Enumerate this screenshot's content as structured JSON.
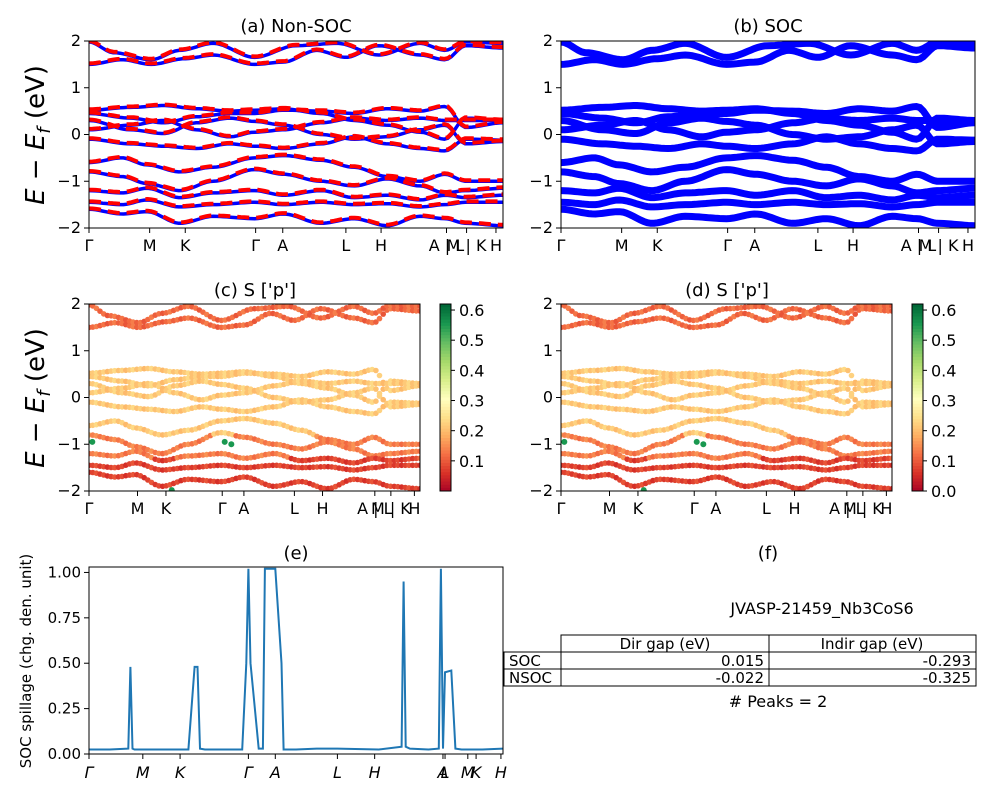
{
  "colors": {
    "nonsoc_solid": "#0000ff",
    "nonsoc_dashed": "#ff0000",
    "soc_band": "#0000ff",
    "spillage_line": "#1f77b4",
    "colormap": "RdYlGn"
  },
  "ylabel_bands": "E − E_f (eV)",
  "ylabel_main": "E − E",
  "ylabel_sub": "f",
  "ylabel_unit": " (eV)",
  "band_yrange": [
    -2,
    2
  ],
  "band_yticks": [
    "2",
    "1",
    "0",
    "−1",
    "−2"
  ],
  "kpath_labels": [
    "Γ",
    "M",
    "K",
    "Γ",
    "A",
    "L",
    "H",
    "A | L",
    "M | K",
    "H"
  ],
  "kpath_positions": [
    0,
    0.1465,
    0.2325,
    0.4025,
    0.468,
    0.6205,
    0.7055,
    0.8635,
    0.912,
    0.983
  ],
  "panels": {
    "a": {
      "title": "(a) Non-SOC"
    },
    "b": {
      "title": "(b) SOC"
    },
    "c": {
      "title": "(c)  S ['p']",
      "colorbar_ticks": [
        "0.6",
        "0.5",
        "0.4",
        "0.3",
        "0.2",
        "0.1"
      ]
    },
    "d": {
      "title": "(d) S ['p']",
      "colorbar_ticks": [
        "0.6",
        "0.5",
        "0.4",
        "0.3",
        "0.2",
        "0.1",
        "0.0"
      ]
    },
    "e": {
      "title": "(e)",
      "ylabel": "SOC spillage (chg. den. unit)"
    },
    "f": {
      "title": "(f)"
    }
  },
  "info": {
    "material_id": "JVASP-21459_Nb3CoS6",
    "table_header": [
      "",
      "Dir gap (eV)",
      "Indir gap (eV)"
    ],
    "table_rows": [
      [
        "SOC",
        "0.015",
        "-0.293"
      ],
      [
        "NSOC",
        "-0.022",
        "-0.325"
      ]
    ],
    "peaks": "# Peaks = 2"
  },
  "chart_data": [
    {
      "type": "line",
      "title": "(a) Non-SOC",
      "ylabel": "E − E_f (eV)",
      "ylim": [
        -2,
        2
      ],
      "x_ticks": [
        "Γ",
        "M",
        "K",
        "Γ",
        "A",
        "L",
        "H",
        "A | L",
        "M | K",
        "H"
      ],
      "series": [
        {
          "values": [
            [
              0,
              1.5
            ],
            [
              0.08,
              1.6
            ],
            [
              0.15,
              1.5
            ],
            [
              0.23,
              1.62
            ],
            [
              0.3,
              1.7
            ],
            [
              0.4,
              1.5
            ],
            [
              0.47,
              1.55
            ],
            [
              0.55,
              1.8
            ],
            [
              0.62,
              1.65
            ],
            [
              0.7,
              1.9
            ],
            [
              0.8,
              1.7
            ],
            [
              0.86,
              1.6
            ],
            [
              0.91,
              1.9
            ],
            [
              1,
              1.85
            ]
          ]
        },
        {
          "values": [
            [
              0,
              1.98
            ],
            [
              0.06,
              1.75
            ],
            [
              0.15,
              1.6
            ],
            [
              0.22,
              1.8
            ],
            [
              0.3,
              1.95
            ],
            [
              0.4,
              1.65
            ],
            [
              0.5,
              1.9
            ],
            [
              0.6,
              1.95
            ],
            [
              0.7,
              1.7
            ],
            [
              0.8,
              1.95
            ],
            [
              0.86,
              1.8
            ],
            [
              0.91,
              1.98
            ],
            [
              1,
              1.95
            ]
          ]
        },
        {
          "values": [
            [
              0,
              0.52
            ],
            [
              0.1,
              0.58
            ],
            [
              0.18,
              0.62
            ],
            [
              0.26,
              0.55
            ],
            [
              0.34,
              0.5
            ],
            [
              0.4,
              0.52
            ],
            [
              0.47,
              0.55
            ],
            [
              0.56,
              0.45
            ],
            [
              0.64,
              0.3
            ],
            [
              0.72,
              0.2
            ],
            [
              0.8,
              0.05
            ],
            [
              0.86,
              -0.1
            ],
            [
              0.91,
              0.35
            ],
            [
              1,
              0.3
            ]
          ]
        },
        {
          "values": [
            [
              0,
              0.45
            ],
            [
              0.1,
              0.35
            ],
            [
              0.18,
              0.25
            ],
            [
              0.26,
              0.38
            ],
            [
              0.34,
              0.45
            ],
            [
              0.4,
              0.45
            ],
            [
              0.47,
              0.52
            ],
            [
              0.56,
              0.5
            ],
            [
              0.64,
              0.45
            ],
            [
              0.72,
              0.55
            ],
            [
              0.8,
              0.5
            ],
            [
              0.86,
              0.6
            ],
            [
              0.91,
              0.15
            ],
            [
              1,
              0.25
            ]
          ]
        },
        {
          "values": [
            [
              0,
              0.3
            ],
            [
              0.1,
              0.1
            ],
            [
              0.18,
              0.02
            ],
            [
              0.26,
              0.25
            ],
            [
              0.34,
              0.35
            ],
            [
              0.4,
              0.28
            ],
            [
              0.47,
              0.2
            ],
            [
              0.56,
              0.0
            ],
            [
              0.64,
              -0.1
            ],
            [
              0.72,
              -0.05
            ],
            [
              0.8,
              0.1
            ],
            [
              0.86,
              0.2
            ],
            [
              0.91,
              -0.2
            ],
            [
              1,
              -0.15
            ]
          ]
        },
        {
          "values": [
            [
              0,
              0.1
            ],
            [
              0.1,
              0.2
            ],
            [
              0.18,
              0.3
            ],
            [
              0.26,
              0.1
            ],
            [
              0.34,
              -0.05
            ],
            [
              0.4,
              0.05
            ],
            [
              0.47,
              0.1
            ],
            [
              0.56,
              0.25
            ],
            [
              0.64,
              0.35
            ],
            [
              0.72,
              0.3
            ],
            [
              0.8,
              0.35
            ],
            [
              0.86,
              0.3
            ],
            [
              0.91,
              0.3
            ],
            [
              1,
              0.3
            ]
          ]
        },
        {
          "values": [
            [
              0,
              -0.1
            ],
            [
              0.1,
              -0.2
            ],
            [
              0.18,
              -0.25
            ],
            [
              0.26,
              -0.3
            ],
            [
              0.34,
              -0.2
            ],
            [
              0.4,
              -0.25
            ],
            [
              0.47,
              -0.3
            ],
            [
              0.56,
              -0.2
            ],
            [
              0.64,
              -0.05
            ],
            [
              0.72,
              -0.2
            ],
            [
              0.8,
              -0.3
            ],
            [
              0.86,
              -0.35
            ],
            [
              0.91,
              -0.1
            ],
            [
              1,
              -0.12
            ]
          ]
        },
        {
          "values": [
            [
              0,
              -0.6
            ],
            [
              0.08,
              -0.5
            ],
            [
              0.14,
              -0.65
            ],
            [
              0.22,
              -0.8
            ],
            [
              0.3,
              -0.7
            ],
            [
              0.4,
              -0.5
            ],
            [
              0.47,
              -0.45
            ],
            [
              0.56,
              -0.55
            ],
            [
              0.64,
              -0.7
            ],
            [
              0.72,
              -0.9
            ],
            [
              0.8,
              -1.0
            ],
            [
              0.86,
              -0.85
            ],
            [
              0.91,
              -1.0
            ],
            [
              1,
              -1.0
            ]
          ]
        },
        {
          "values": [
            [
              0,
              -0.8
            ],
            [
              0.08,
              -0.9
            ],
            [
              0.14,
              -1.05
            ],
            [
              0.22,
              -1.2
            ],
            [
              0.3,
              -1.0
            ],
            [
              0.4,
              -0.75
            ],
            [
              0.47,
              -0.85
            ],
            [
              0.56,
              -1.0
            ],
            [
              0.64,
              -1.1
            ],
            [
              0.72,
              -0.95
            ],
            [
              0.8,
              -1.1
            ],
            [
              0.86,
              -1.25
            ],
            [
              0.91,
              -1.2
            ],
            [
              1,
              -1.15
            ]
          ]
        },
        {
          "values": [
            [
              0,
              -1.2
            ],
            [
              0.08,
              -1.25
            ],
            [
              0.14,
              -1.15
            ],
            [
              0.22,
              -1.35
            ],
            [
              0.3,
              -1.25
            ],
            [
              0.4,
              -1.2
            ],
            [
              0.47,
              -1.3
            ],
            [
              0.56,
              -1.2
            ],
            [
              0.64,
              -1.35
            ],
            [
              0.72,
              -1.3
            ],
            [
              0.8,
              -1.4
            ],
            [
              0.86,
              -1.3
            ],
            [
              0.91,
              -1.35
            ],
            [
              1,
              -1.3
            ]
          ]
        },
        {
          "values": [
            [
              0,
              -1.45
            ],
            [
              0.08,
              -1.5
            ],
            [
              0.14,
              -1.4
            ],
            [
              0.22,
              -1.55
            ],
            [
              0.3,
              -1.5
            ],
            [
              0.4,
              -1.45
            ],
            [
              0.47,
              -1.5
            ],
            [
              0.56,
              -1.45
            ],
            [
              0.64,
              -1.5
            ],
            [
              0.72,
              -1.48
            ],
            [
              0.8,
              -1.55
            ],
            [
              0.86,
              -1.5
            ],
            [
              0.91,
              -1.45
            ],
            [
              1,
              -1.45
            ]
          ]
        },
        {
          "values": [
            [
              0,
              -1.6
            ],
            [
              0.08,
              -1.7
            ],
            [
              0.14,
              -1.65
            ],
            [
              0.22,
              -1.9
            ],
            [
              0.3,
              -1.75
            ],
            [
              0.4,
              -1.8
            ],
            [
              0.47,
              -1.7
            ],
            [
              0.56,
              -1.9
            ],
            [
              0.64,
              -1.8
            ],
            [
              0.72,
              -1.95
            ],
            [
              0.8,
              -1.75
            ],
            [
              0.86,
              -1.8
            ],
            [
              0.91,
              -1.9
            ],
            [
              1,
              -1.95
            ]
          ]
        }
      ]
    },
    {
      "type": "line",
      "title": "(b) SOC",
      "ylim": [
        -2,
        2
      ],
      "x_ticks": [
        "Γ",
        "M",
        "K",
        "Γ",
        "A",
        "L",
        "H",
        "A | L",
        "M | K",
        "H"
      ]
    },
    {
      "type": "scatter",
      "title": "(c)  S ['p']",
      "ylim": [
        -2,
        2
      ],
      "colorbar_range": [
        0.0,
        0.62
      ]
    },
    {
      "type": "scatter",
      "title": "(d) S ['p']",
      "ylim": [
        -2,
        2
      ],
      "colorbar_range": [
        0.0,
        0.62
      ]
    },
    {
      "type": "line",
      "title": "(e)",
      "ylabel": "SOC spillage (chg. den. unit)",
      "ylim": [
        0,
        1.03
      ],
      "yticks": [
        "0.00",
        "0.25",
        "0.50",
        "0.75",
        "1.00"
      ],
      "x_ticks": [
        "Γ",
        "M",
        "K",
        "Γ",
        "A",
        "L",
        "H",
        "A",
        "L",
        "M",
        "K",
        "H"
      ],
      "x_tick_positions": [
        0,
        0.13,
        0.22,
        0.385,
        0.45,
        0.6,
        0.69,
        0.855,
        0.86,
        0.915,
        0.935,
        0.995
      ],
      "x": [
        0,
        0.05,
        0.095,
        0.1,
        0.1,
        0.105,
        0.11,
        0.15,
        0.2,
        0.24,
        0.255,
        0.262,
        0.268,
        0.28,
        0.33,
        0.37,
        0.38,
        0.385,
        0.39,
        0.41,
        0.42,
        0.425,
        0.445,
        0.45,
        0.465,
        0.47,
        0.5,
        0.55,
        0.6,
        0.7,
        0.755,
        0.76,
        0.765,
        0.775,
        0.82,
        0.845,
        0.85,
        0.855,
        0.86,
        0.875,
        0.885,
        0.9,
        0.95,
        1.0
      ],
      "values": [
        0.025,
        0.025,
        0.03,
        0.48,
        0.48,
        0.03,
        0.025,
        0.025,
        0.025,
        0.025,
        0.48,
        0.48,
        0.03,
        0.025,
        0.025,
        0.025,
        0.5,
        1.02,
        0.5,
        0.03,
        0.03,
        1.02,
        1.02,
        1.02,
        0.5,
        0.025,
        0.025,
        0.03,
        0.03,
        0.025,
        0.04,
        0.95,
        0.04,
        0.03,
        0.025,
        0.03,
        1.02,
        0.03,
        0.45,
        0.46,
        0.03,
        0.025,
        0.025,
        0.03
      ]
    }
  ]
}
